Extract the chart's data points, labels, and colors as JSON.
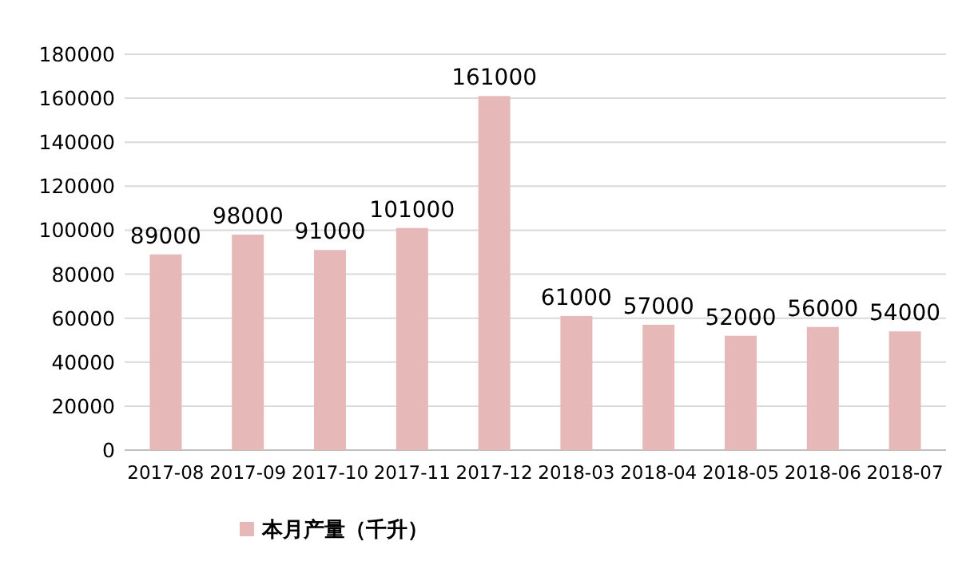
{
  "chart_data": {
    "type": "bar",
    "categories": [
      "2017-08",
      "2017-09",
      "2017-10",
      "2017-11",
      "2017-12",
      "2018-03",
      "2018-04",
      "2018-05",
      "2018-06",
      "2018-07"
    ],
    "series": [
      {
        "name": "本月产量（千升）",
        "color": "#e6b9b8",
        "values": [
          89000,
          98000,
          91000,
          101000,
          161000,
          61000,
          57000,
          52000,
          56000,
          54000
        ]
      }
    ],
    "ylim": [
      0,
      180000
    ],
    "yticks": [
      0,
      20000,
      40000,
      60000,
      80000,
      100000,
      120000,
      140000,
      160000,
      180000
    ],
    "grid": "y",
    "data_labels": true,
    "legend": "bottom left"
  }
}
